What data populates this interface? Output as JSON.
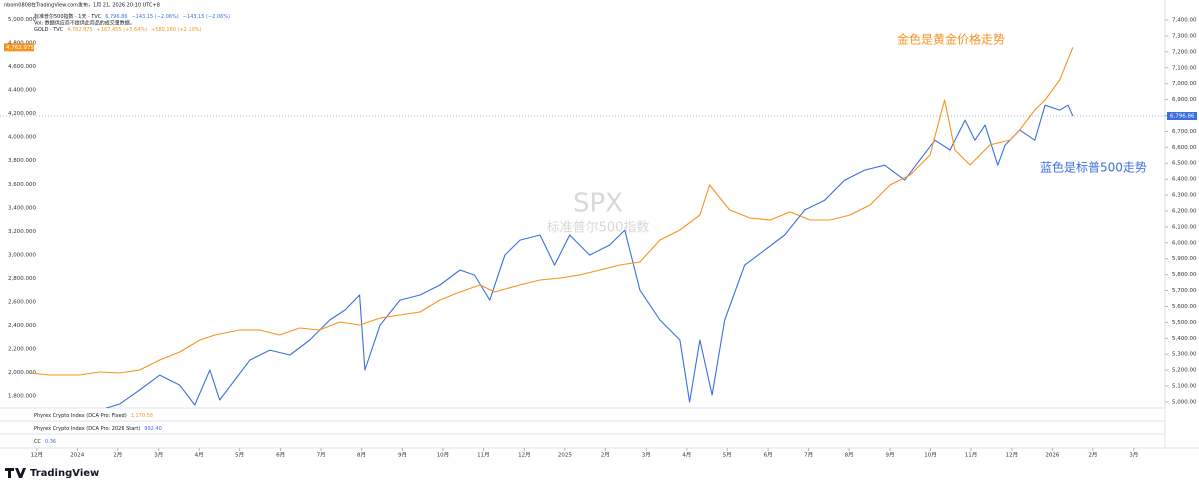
{
  "chart_data": {
    "type": "line",
    "header": "nbom0808在TradingView.com发布，1月 21, 2026 20:10 UTC+8",
    "volume_note": "Vol: 数据供应商不提供此商品的成交量数据。",
    "watermark": [
      "SPX",
      "标准普尔500指数"
    ],
    "grid": false,
    "xlim": [
      2023.903,
      2026.231
    ],
    "ylim": [
      1700,
      5080
    ],
    "y2lim": [
      4962,
      7463
    ],
    "xticks": [
      {
        "value": 2023.917,
        "label": "12月"
      },
      {
        "value": 2024.0,
        "label": "2024"
      },
      {
        "value": 2024.083,
        "label": "2月"
      },
      {
        "value": 2024.167,
        "label": "3月"
      },
      {
        "value": 2024.25,
        "label": "4月"
      },
      {
        "value": 2024.333,
        "label": "5月"
      },
      {
        "value": 2024.417,
        "label": "6月"
      },
      {
        "value": 2024.5,
        "label": "7月"
      },
      {
        "value": 2024.583,
        "label": "8月"
      },
      {
        "value": 2024.667,
        "label": "9月"
      },
      {
        "value": 2024.75,
        "label": "10月"
      },
      {
        "value": 2024.833,
        "label": "11月"
      },
      {
        "value": 2024.917,
        "label": "12月"
      },
      {
        "value": 2025.0,
        "label": "2025"
      },
      {
        "value": 2025.083,
        "label": "2月"
      },
      {
        "value": 2025.167,
        "label": "3月"
      },
      {
        "value": 2025.25,
        "label": "4月"
      },
      {
        "value": 2025.333,
        "label": "5月"
      },
      {
        "value": 2025.417,
        "label": "6月"
      },
      {
        "value": 2025.5,
        "label": "7月"
      },
      {
        "value": 2025.583,
        "label": "8月"
      },
      {
        "value": 2025.667,
        "label": "9月"
      },
      {
        "value": 2025.75,
        "label": "10月"
      },
      {
        "value": 2025.833,
        "label": "11月"
      },
      {
        "value": 2025.917,
        "label": "12月"
      },
      {
        "value": 2026.0,
        "label": "2026"
      },
      {
        "value": 2026.083,
        "label": "2月"
      },
      {
        "value": 2026.167,
        "label": "3月"
      }
    ],
    "yticks": [
      {
        "value": 5000,
        "label": "5,000.000"
      },
      {
        "value": 4800,
        "label": "4,800.000"
      },
      {
        "value": 4600,
        "label": "4,600.000"
      },
      {
        "value": 4400,
        "label": "4,400.000"
      },
      {
        "value": 4200,
        "label": "4,200.000"
      },
      {
        "value": 4000,
        "label": "4,000.000"
      },
      {
        "value": 3800,
        "label": "3,800.000"
      },
      {
        "value": 3600,
        "label": "3,600.000"
      },
      {
        "value": 3400,
        "label": "3,400.000"
      },
      {
        "value": 3200,
        "label": "3,200.000"
      },
      {
        "value": 3000,
        "label": "3,000.000"
      },
      {
        "value": 2800,
        "label": "2,800.000"
      },
      {
        "value": 2600,
        "label": "2,600.000"
      },
      {
        "value": 2400,
        "label": "2,400.000"
      },
      {
        "value": 2200,
        "label": "2,200.000"
      },
      {
        "value": 2000,
        "label": "2,000.000"
      },
      {
        "value": 1800,
        "label": "1,800.000"
      }
    ],
    "y2ticks": [
      {
        "value": 7400,
        "label": "7,400.00"
      },
      {
        "value": 7300,
        "label": "7,300.00"
      },
      {
        "value": 7200,
        "label": "7,200.00"
      },
      {
        "value": 7100,
        "label": "7,100.00"
      },
      {
        "value": 7000,
        "label": "7,000.00"
      },
      {
        "value": 6900,
        "label": "6,900.00"
      },
      {
        "value": 6800,
        "label": "6,800.00"
      },
      {
        "value": 6700,
        "label": "6,700.00"
      },
      {
        "value": 6600,
        "label": "6,600.00"
      },
      {
        "value": 6500,
        "label": "6,500.00"
      },
      {
        "value": 6400,
        "label": "6,400.00"
      },
      {
        "value": 6300,
        "label": "6,300.00"
      },
      {
        "value": 6200,
        "label": "6,200.00"
      },
      {
        "value": 6100,
        "label": "6,100.00"
      },
      {
        "value": 6000,
        "label": "6,000.00"
      },
      {
        "value": 5900,
        "label": "5,900.00"
      },
      {
        "value": 5800,
        "label": "5,800.00"
      },
      {
        "value": 5700,
        "label": "5,700.00"
      },
      {
        "value": 5600,
        "label": "5,600.00"
      },
      {
        "value": 5500,
        "label": "5,500.00"
      },
      {
        "value": 5400,
        "label": "5,400.00"
      },
      {
        "value": 5300,
        "label": "5,300.00"
      },
      {
        "value": 5200,
        "label": "5,200.00"
      },
      {
        "value": 5100,
        "label": "5,100.00"
      },
      {
        "value": 5000,
        "label": "5,000.00"
      }
    ],
    "series": [
      {
        "name": "标准普尔500指数 · 1天 · TVC",
        "color": "#3b6fe0",
        "axis": "y2",
        "legend_values": [
          "6,796.86",
          "−143.15 (−2.06%)",
          "−143.15 (−2.06%)"
        ],
        "last_label": "6,796.86",
        "x": [
          2024.046,
          2024.087,
          2024.128,
          2024.169,
          2024.21,
          2024.241,
          2024.272,
          2024.292,
          2024.323,
          2024.354,
          2024.395,
          2024.436,
          2024.477,
          2024.518,
          2024.549,
          2024.579,
          2024.59,
          2024.621,
          2024.662,
          2024.703,
          2024.744,
          2024.785,
          2024.815,
          2024.846,
          2024.877,
          2024.908,
          2024.949,
          2024.979,
          2025.01,
          2025.051,
          2025.092,
          2025.123,
          2025.154,
          2025.195,
          2025.236,
          2025.256,
          2025.277,
          2025.302,
          2025.328,
          2025.369,
          2025.41,
          2025.451,
          2025.492,
          2025.533,
          2025.574,
          2025.615,
          2025.656,
          2025.697,
          2025.728,
          2025.759,
          2025.79,
          2025.821,
          2025.841,
          2025.862,
          2025.888,
          2025.903,
          2025.933,
          2025.964,
          2025.985,
          2026.015,
          2026.032,
          2026.042
        ],
        "values": [
          4949,
          4987,
          5075,
          5169,
          5106,
          4981,
          5201,
          5012,
          5138,
          5263,
          5326,
          5295,
          5389,
          5515,
          5578,
          5672,
          5201,
          5483,
          5640,
          5672,
          5735,
          5829,
          5797,
          5640,
          5923,
          6017,
          6049,
          5860,
          6049,
          5923,
          5986,
          6080,
          5703,
          5515,
          5389,
          5000,
          5389,
          5044,
          5515,
          5860,
          5954,
          6049,
          6206,
          6268,
          6394,
          6457,
          6488,
          6394,
          6520,
          6645,
          6583,
          6771,
          6645,
          6740,
          6488,
          6614,
          6708,
          6645,
          6865,
          6834,
          6865,
          6796.86
        ]
      },
      {
        "name": "GOLD · TVC",
        "color": "#f7931e",
        "legend_values": [
          "4,762.975",
          "+167.455 (+3.64%)",
          "+580.180 (+2.10%)"
        ],
        "last_label": "4,762.975",
        "x": [
          2023.903,
          2023.944,
          2024.005,
          2024.046,
          2024.087,
          2024.128,
          2024.169,
          2024.21,
          2024.251,
          2024.282,
          2024.333,
          2024.374,
          2024.415,
          2024.456,
          2024.497,
          2024.538,
          2024.579,
          2024.621,
          2024.662,
          2024.703,
          2024.744,
          2024.785,
          2024.826,
          2024.856,
          2024.908,
          2024.949,
          2024.99,
          2025.031,
          2025.072,
          2025.113,
          2025.154,
          2025.195,
          2025.236,
          2025.277,
          2025.297,
          2025.338,
          2025.379,
          2025.421,
          2025.462,
          2025.503,
          2025.544,
          2025.585,
          2025.626,
          2025.667,
          2025.708,
          2025.749,
          2025.779,
          2025.8,
          2025.831,
          2025.872,
          2025.913,
          2025.933,
          2025.964,
          2025.985,
          2026.015,
          2026.042
        ],
        "values": [
          1997,
          1980,
          1980,
          2006,
          1997,
          2023,
          2108,
          2176,
          2277,
          2320,
          2362,
          2362,
          2320,
          2379,
          2362,
          2430,
          2405,
          2464,
          2490,
          2515,
          2617,
          2685,
          2745,
          2685,
          2745,
          2787,
          2804,
          2830,
          2872,
          2914,
          2940,
          3127,
          3212,
          3339,
          3594,
          3382,
          3314,
          3297,
          3365,
          3297,
          3297,
          3339,
          3424,
          3594,
          3679,
          3849,
          4316,
          3891,
          3764,
          3934,
          3976,
          4061,
          4231,
          4316,
          4486,
          4762.975
        ]
      }
    ],
    "annotations": [
      {
        "text": "金色是黄金价格走势",
        "color": "#f7931e"
      },
      {
        "text": "蓝色是标普500走势",
        "color": "#3b6fe0"
      }
    ],
    "indicators": [
      {
        "name": "Phyrex Crypto Index (DCA Pro: Fixed)",
        "label": "1,170.58",
        "color": "#f7931e"
      },
      {
        "name": "Phyrex Crypto Index (DCA Pro: 2026 Start)",
        "label": "992.40",
        "color": "#3b6fe0"
      },
      {
        "name": "CC",
        "label": "0.36",
        "color": "#3b6fe0"
      }
    ],
    "brand": "TradingView"
  }
}
